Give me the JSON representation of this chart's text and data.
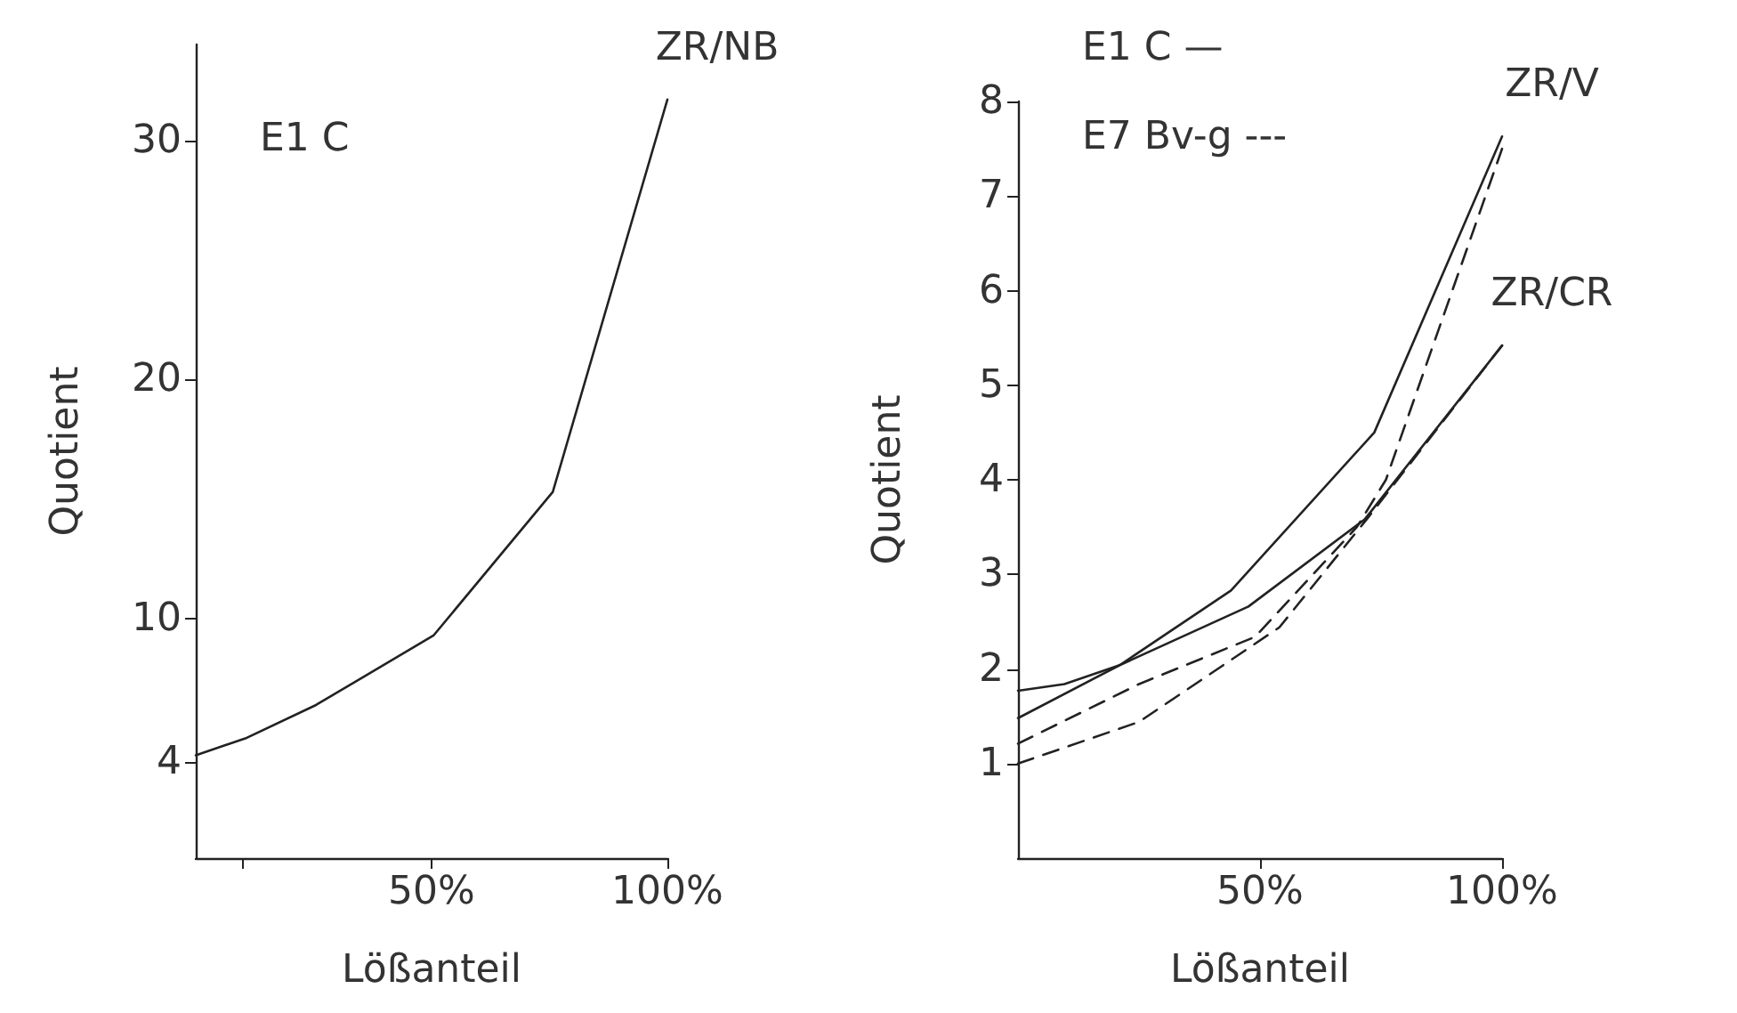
{
  "chart_data": [
    {
      "type": "line",
      "xlabel": "Lößanteil",
      "ylabel": "Quotient",
      "xlim": [
        0,
        100
      ],
      "ylim": [
        0,
        34
      ],
      "xticks": [
        {
          "value": 10,
          "label": null
        },
        {
          "value": 50,
          "label": "50%"
        },
        {
          "value": 100,
          "label": "100%"
        }
      ],
      "yticks": [
        4,
        10,
        20,
        30
      ],
      "grid": false,
      "marker": "none",
      "series": [
        {
          "name": "ZR/NB",
          "color": "#222222",
          "line_style": "solid",
          "x": [
            0,
            10.5,
            25.5,
            50.4,
            75.7,
            100
          ],
          "values": [
            4.3,
            5.0,
            6.4,
            9.3,
            15.3,
            31.7
          ]
        }
      ],
      "annotations": [
        "E1 C"
      ]
    },
    {
      "type": "line",
      "xlabel": "Lößanteil",
      "ylabel": "Quotient",
      "xlim": [
        0,
        100
      ],
      "ylim": [
        0,
        8
      ],
      "xticks": [
        {
          "value": 50,
          "label": "50%"
        },
        {
          "value": 100,
          "label": "100%"
        }
      ],
      "yticks": [
        1,
        2,
        3,
        4,
        5,
        6,
        7,
        8
      ],
      "grid": false,
      "marker": "none",
      "series": [
        {
          "name": "ZR/V",
          "color": "#222222",
          "line_style": "solid",
          "x": [
            0,
            9.6,
            21,
            44,
            73.6,
            100
          ],
          "values": [
            1.77,
            1.84,
            2.04,
            2.83,
            4.5,
            7.63
          ]
        },
        {
          "name": "ZR/CR",
          "color": "#222222",
          "line_style": "solid",
          "x": [
            0,
            21,
            47.6,
            71.6,
            100
          ],
          "values": [
            1.48,
            2.04,
            2.66,
            3.58,
            5.42
          ]
        },
        {
          "color": "#222222",
          "line_style": "dashed",
          "x": [
            0,
            25,
            49,
            70,
            76,
            100
          ],
          "values": [
            1.21,
            1.84,
            2.34,
            3.5,
            4.0,
            7.5
          ]
        },
        {
          "color": "#222222",
          "line_style": "dashed",
          "x": [
            0,
            25,
            54,
            72,
            100
          ],
          "values": [
            1.0,
            1.44,
            2.44,
            3.58,
            5.42
          ]
        }
      ],
      "annotations": [
        "E1 C —",
        "E7 Bv-g ---"
      ]
    }
  ]
}
